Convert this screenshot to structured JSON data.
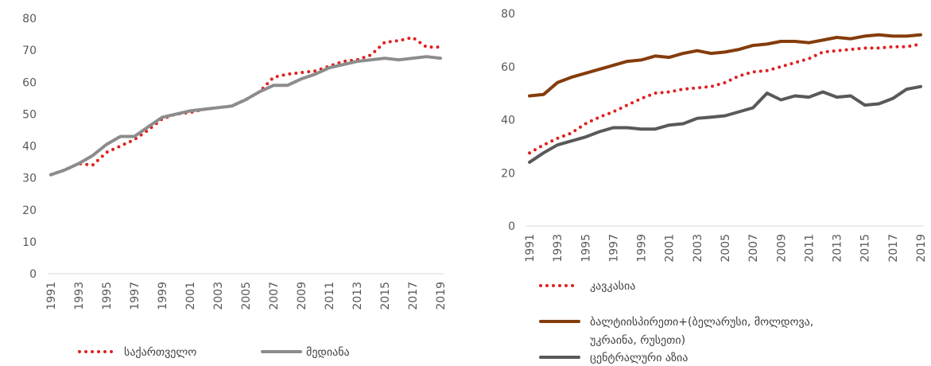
{
  "chart_data": [
    {
      "type": "line",
      "x": [
        1991,
        1992,
        1993,
        1994,
        1995,
        1996,
        1997,
        1998,
        1999,
        2000,
        2001,
        2002,
        2003,
        2004,
        2005,
        2006,
        2007,
        2008,
        2009,
        2010,
        2011,
        2012,
        2013,
        2014,
        2015,
        2016,
        2017,
        2018,
        2019
      ],
      "x_tick_labels": [
        "1991",
        "1993",
        "1995",
        "1997",
        "1999",
        "2001",
        "2003",
        "2005",
        "2007",
        "2009",
        "2011",
        "2013",
        "2015",
        "2017",
        "2019"
      ],
      "y_tick_labels": [
        "0",
        "10",
        "20",
        "30",
        "40",
        "50",
        "60",
        "70",
        "80"
      ],
      "ylim": [
        0,
        80
      ],
      "grid": false,
      "legend_position": "bottom",
      "series": [
        {
          "name": "საქართველო",
          "color": "#e02020",
          "style": "dotted",
          "values": [
            31,
            32.5,
            34.5,
            34,
            38,
            40,
            42,
            45,
            48.5,
            50,
            50.5,
            51.5,
            52,
            52.5,
            54.5,
            57,
            61.5,
            62.5,
            63,
            63.5,
            65,
            66.5,
            67,
            68.5,
            72.5,
            73,
            74,
            71,
            71
          ]
        },
        {
          "name": "მედიანა",
          "color": "#8c8c8c",
          "style": "solid",
          "values": [
            31,
            32.5,
            34.5,
            37,
            40.5,
            43,
            43,
            46,
            49,
            50,
            51,
            51.5,
            52,
            52.5,
            54.5,
            57,
            59,
            59,
            61,
            62.5,
            64.5,
            65.5,
            66.5,
            67,
            67.5,
            67,
            67.5,
            68,
            67.5
          ]
        }
      ]
    },
    {
      "type": "line",
      "x": [
        1991,
        1992,
        1993,
        1994,
        1995,
        1996,
        1997,
        1998,
        1999,
        2000,
        2001,
        2002,
        2003,
        2004,
        2005,
        2006,
        2007,
        2008,
        2009,
        2010,
        2011,
        2012,
        2013,
        2014,
        2015,
        2016,
        2017,
        2018,
        2019
      ],
      "x_tick_labels": [
        "1991",
        "1993",
        "1995",
        "1997",
        "1999",
        "2001",
        "2003",
        "2005",
        "2007",
        "2009",
        "2011",
        "2013",
        "2015",
        "2017",
        "2019"
      ],
      "y_tick_labels": [
        "0",
        "20",
        "40",
        "60",
        "80"
      ],
      "ylim": [
        0,
        80
      ],
      "grid": false,
      "legend_position": "bottom",
      "series": [
        {
          "name": "კავკასია",
          "color": "#e02020",
          "style": "dotted",
          "values": [
            27.5,
            30.5,
            33,
            35,
            38.5,
            41,
            43,
            45.5,
            48,
            50,
            50.5,
            51.5,
            52,
            52.5,
            54,
            56.5,
            58,
            58.5,
            60,
            61.5,
            63,
            65.5,
            66,
            66.5,
            67,
            67,
            67.5,
            67.5,
            68.5
          ]
        },
        {
          "name": "ბალტიისპირეთი+(ბელარუსი, მოლდოვა, უკრაინა, რუსეთი)",
          "color": "#843c0c",
          "style": "solid",
          "values": [
            49,
            49.5,
            54,
            56,
            57.5,
            59,
            60.5,
            62,
            62.5,
            64,
            63.5,
            65,
            66,
            65,
            65.5,
            66.5,
            68,
            68.5,
            69.5,
            69.5,
            69,
            70,
            71,
            70.5,
            71.5,
            72,
            71.5,
            71.5,
            72
          ]
        },
        {
          "name": "ცენტრალური აზია",
          "color": "#595959",
          "style": "solid",
          "values": [
            24,
            27.5,
            30.5,
            32,
            33.5,
            35.5,
            37,
            37,
            36.5,
            36.5,
            38,
            38.5,
            40.5,
            41,
            41.5,
            43,
            44.5,
            50,
            47.5,
            49,
            48.5,
            50.5,
            48.5,
            49,
            45.5,
            46,
            48,
            51.5,
            52.5
          ]
        }
      ]
    }
  ]
}
